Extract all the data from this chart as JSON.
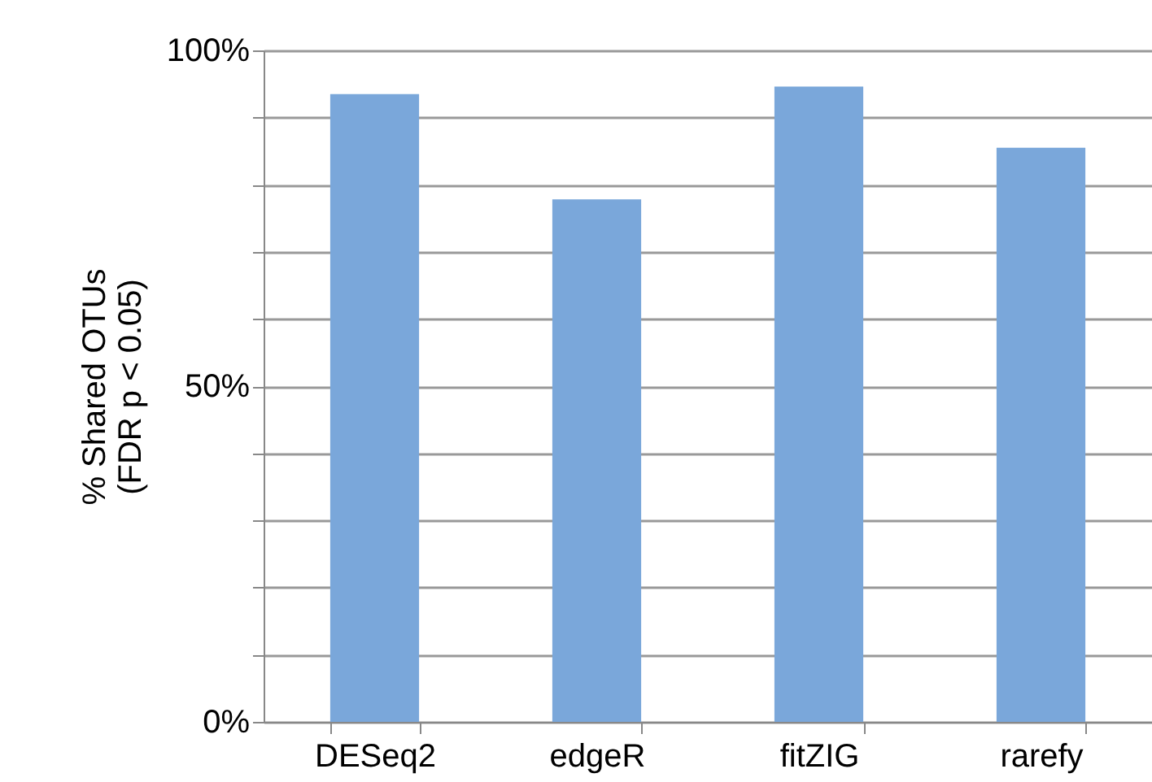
{
  "chart_data": {
    "type": "bar",
    "categories": [
      "DESeq2",
      "edgeR",
      "fitZIG",
      "rarefy"
    ],
    "values": [
      93.5,
      77.8,
      94.6,
      85.5
    ],
    "color": "#7aa7da",
    "ylabel": "% Shared OTUs\n(FDR p < 0.05)",
    "ylim": [
      0,
      100
    ],
    "yticks": [
      {
        "value": 0,
        "label": "0%"
      },
      {
        "value": 10,
        "label": null
      },
      {
        "value": 20,
        "label": null
      },
      {
        "value": 30,
        "label": null
      },
      {
        "value": 40,
        "label": null
      },
      {
        "value": 50,
        "label": "50%"
      },
      {
        "value": 60,
        "label": null
      },
      {
        "value": 70,
        "label": null
      },
      {
        "value": 80,
        "label": null
      },
      {
        "value": 90,
        "label": null
      },
      {
        "value": 100,
        "label": "100%"
      }
    ],
    "grid": "y"
  }
}
